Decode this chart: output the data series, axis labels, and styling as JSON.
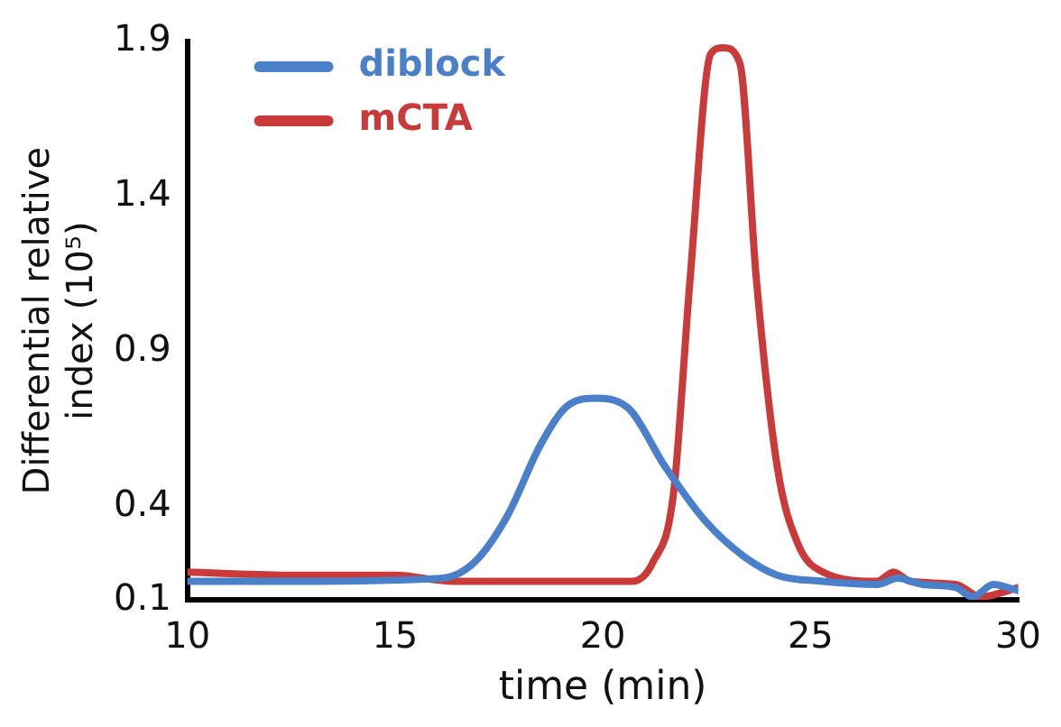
{
  "chart_data": {
    "type": "line",
    "xlabel": "time (min)",
    "ylabel": "Differential relative index (10⁵)",
    "xlim": [
      10,
      30
    ],
    "xticks": [
      10,
      15,
      20,
      25,
      30
    ],
    "ylim": [
      0.1,
      1.9
    ],
    "yticks": [
      0.1,
      0.4,
      0.9,
      1.4,
      1.9
    ],
    "grid": false,
    "legend": "top left",
    "marker": "none",
    "line_style": "solid",
    "series": [
      {
        "name": "diblock",
        "color": "#4a7fc9",
        "x": [
          10,
          12.6,
          16.1,
          16.9,
          17.7,
          18.5,
          19.1,
          19.8,
          20.6,
          21.5,
          22.5,
          23.4,
          24.2,
          25.3,
          26.6,
          27.1,
          27.7,
          28.5,
          28.9,
          29.4,
          30
        ],
        "values": [
          0.16,
          0.16,
          0.17,
          0.22,
          0.37,
          0.6,
          0.72,
          0.75,
          0.72,
          0.53,
          0.35,
          0.24,
          0.18,
          0.16,
          0.15,
          0.17,
          0.15,
          0.14,
          0.11,
          0.15,
          0.13
        ]
      },
      {
        "name": "mCTA",
        "color": "#c93a3a",
        "x": [
          10,
          12.6,
          15,
          16.4,
          19,
          20.7,
          21.2,
          21.7,
          22.1,
          22.6,
          22.9,
          23.3,
          23.7,
          24.2,
          24.7,
          25.3,
          26.6,
          27,
          27.4,
          28.5,
          29.1,
          30
        ],
        "values": [
          0.19,
          0.18,
          0.18,
          0.16,
          0.16,
          0.16,
          0.22,
          0.44,
          1.13,
          1.86,
          1.88,
          1.83,
          1.13,
          0.53,
          0.28,
          0.19,
          0.16,
          0.19,
          0.16,
          0.15,
          0.11,
          0.14
        ]
      }
    ]
  }
}
